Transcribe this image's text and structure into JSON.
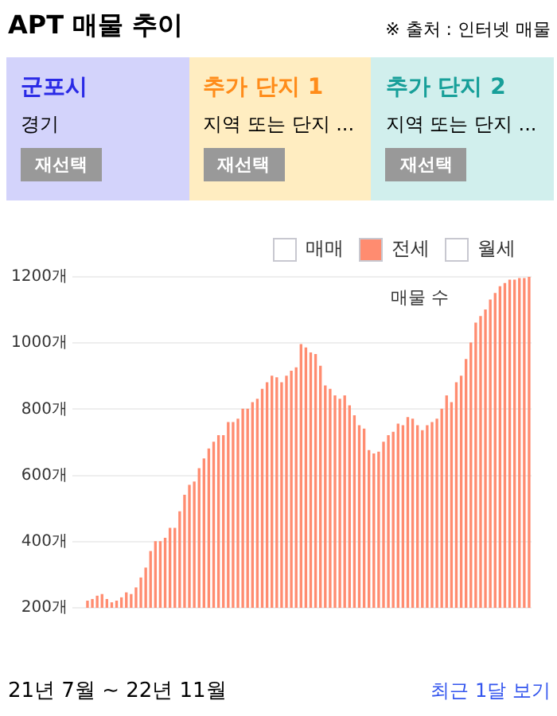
{
  "chart_data": {
    "type": "bar",
    "title": "APT 매물 추이",
    "annotations": [
      "※ 출처 : 인터넷 매물",
      "군포시",
      "경기",
      "재선택",
      "추가 단지 1",
      "지역 또는 단지 ...",
      "재선택",
      "추가 단지 2",
      "지역 또는 단지 ...",
      "재선택",
      "21년 7월 ~ 22년 11월",
      "최근 1달 보기",
      "매물 수"
    ],
    "categories": [
      null,
      null,
      null,
      null,
      null,
      null,
      null,
      null,
      null,
      null,
      null,
      null,
      null,
      null,
      null,
      null,
      null,
      null,
      null,
      null,
      null,
      null,
      null,
      null,
      null,
      null,
      null,
      null,
      null,
      null,
      null,
      null,
      null,
      null,
      null,
      null,
      null,
      null,
      null,
      null,
      null,
      null,
      null,
      null,
      null,
      null,
      null,
      null,
      null,
      null,
      null,
      null,
      null,
      null,
      null,
      null,
      null,
      null,
      null,
      null,
      null,
      null,
      null,
      null,
      null,
      null,
      null,
      null,
      null,
      null,
      null,
      null,
      null,
      null,
      null,
      null,
      null,
      null,
      null,
      null,
      null,
      null,
      null,
      null,
      null,
      null,
      null,
      null,
      null,
      null,
      null,
      null
    ],
    "series": [
      {
        "name": "매매",
        "color": "#ffffff",
        "values": [
          null,
          null,
          null,
          null,
          null,
          null,
          null,
          null,
          null,
          null,
          null,
          null,
          null,
          null,
          null,
          null,
          null,
          null,
          null,
          null,
          null,
          null,
          null,
          null,
          null,
          null,
          null,
          null,
          null,
          null,
          null,
          null,
          null,
          null,
          null,
          null,
          null,
          null,
          null,
          null,
          null,
          null,
          null,
          null,
          null,
          null,
          null,
          null,
          null,
          null,
          null,
          null,
          null,
          null,
          null,
          null,
          null,
          null,
          null,
          null,
          null,
          null,
          null,
          null,
          null,
          null,
          null,
          null,
          null,
          null,
          null,
          null,
          null,
          null,
          null,
          null,
          null,
          null,
          null,
          null,
          null,
          null,
          null,
          null,
          null,
          null,
          null,
          null,
          null,
          null,
          null,
          null
        ]
      },
      {
        "name": "전세",
        "color": "#ff8c70",
        "values": [
          220,
          225,
          235,
          240,
          225,
          215,
          220,
          230,
          245,
          240,
          260,
          290,
          320,
          370,
          400,
          400,
          410,
          440,
          440,
          490,
          540,
          570,
          580,
          620,
          650,
          680,
          700,
          720,
          720,
          760,
          760,
          770,
          800,
          800,
          820,
          830,
          860,
          880,
          900,
          895,
          880,
          900,
          915,
          925,
          995,
          985,
          970,
          965,
          930,
          870,
          860,
          840,
          830,
          840,
          810,
          780,
          750,
          740,
          675,
          665,
          670,
          700,
          720,
          730,
          755,
          750,
          775,
          770,
          750,
          735,
          750,
          760,
          770,
          800,
          840,
          820,
          880,
          900,
          950,
          1000,
          1060,
          1080,
          1100,
          1130,
          1150,
          1170,
          1180,
          1190,
          1190,
          1195,
          1195,
          1200
        ]
      },
      {
        "name": "월세",
        "color": "#ffffff",
        "values": [
          null,
          null,
          null,
          null,
          null,
          null,
          null,
          null,
          null,
          null,
          null,
          null,
          null,
          null,
          null,
          null,
          null,
          null,
          null,
          null,
          null,
          null,
          null,
          null,
          null,
          null,
          null,
          null,
          null,
          null,
          null,
          null,
          null,
          null,
          null,
          null,
          null,
          null,
          null,
          null,
          null,
          null,
          null,
          null,
          null,
          null,
          null,
          null,
          null,
          null,
          null,
          null,
          null,
          null,
          null,
          null,
          null,
          null,
          null,
          null,
          null,
          null,
          null,
          null,
          null,
          null,
          null,
          null,
          null,
          null,
          null,
          null,
          null,
          null,
          null,
          null,
          null,
          null,
          null,
          null,
          null,
          null,
          null,
          null,
          null,
          null,
          null,
          null,
          null,
          null,
          null,
          null
        ]
      }
    ],
    "ylim": [
      200,
      1200
    ],
    "yticks": [
      {
        "value": 200,
        "label": "200개"
      },
      {
        "value": 400,
        "label": "400개"
      },
      {
        "value": 600,
        "label": "600개"
      },
      {
        "value": 800,
        "label": "800개"
      },
      {
        "value": 1000,
        "label": "1000개"
      },
      {
        "value": 1200,
        "label": "1200개"
      }
    ],
    "grid": "y",
    "legend": "top right",
    "tick_labels": "y"
  }
}
